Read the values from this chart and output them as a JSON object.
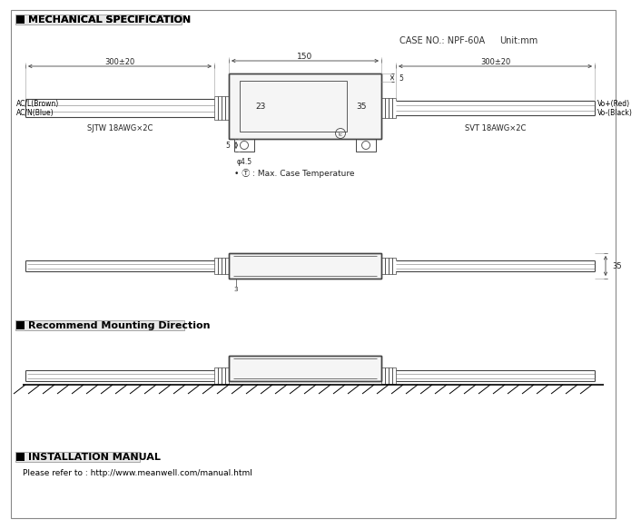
{
  "bg_color": "#ffffff",
  "line_color": "#444444",
  "title1": "MECHANICAL SPECIFICATION",
  "case_no": "CASE NO.: NPF-60A",
  "unit": "Unit:mm",
  "dim_150": "150",
  "dim_300_left": "300±20",
  "dim_300_right": "300±20",
  "dim_5a": "5",
  "dim_5b": "5",
  "dim_35": "35",
  "dim_35b": "35",
  "dim_4_5": "φ4.5",
  "dim_23": "23",
  "label_ac_brown": "AC/L(Brown)",
  "label_ac_blue": "AC/N(Blue)",
  "label_sjtw": "SJTW 18AWG×2C",
  "label_svt": "SVT 18AWG×2C",
  "label_vo_red": "Vo+(Red)",
  "label_vo_black": "Vo-(Black)",
  "label_tc": "• Ⓣ : Max. Case Temperature",
  "dim_3": "3",
  "title2": "Recommend Mounting Direction",
  "title3": "INSTALLATION MANUAL",
  "install_url": "Please refer to : http://www.meanwell.com/manual.html"
}
